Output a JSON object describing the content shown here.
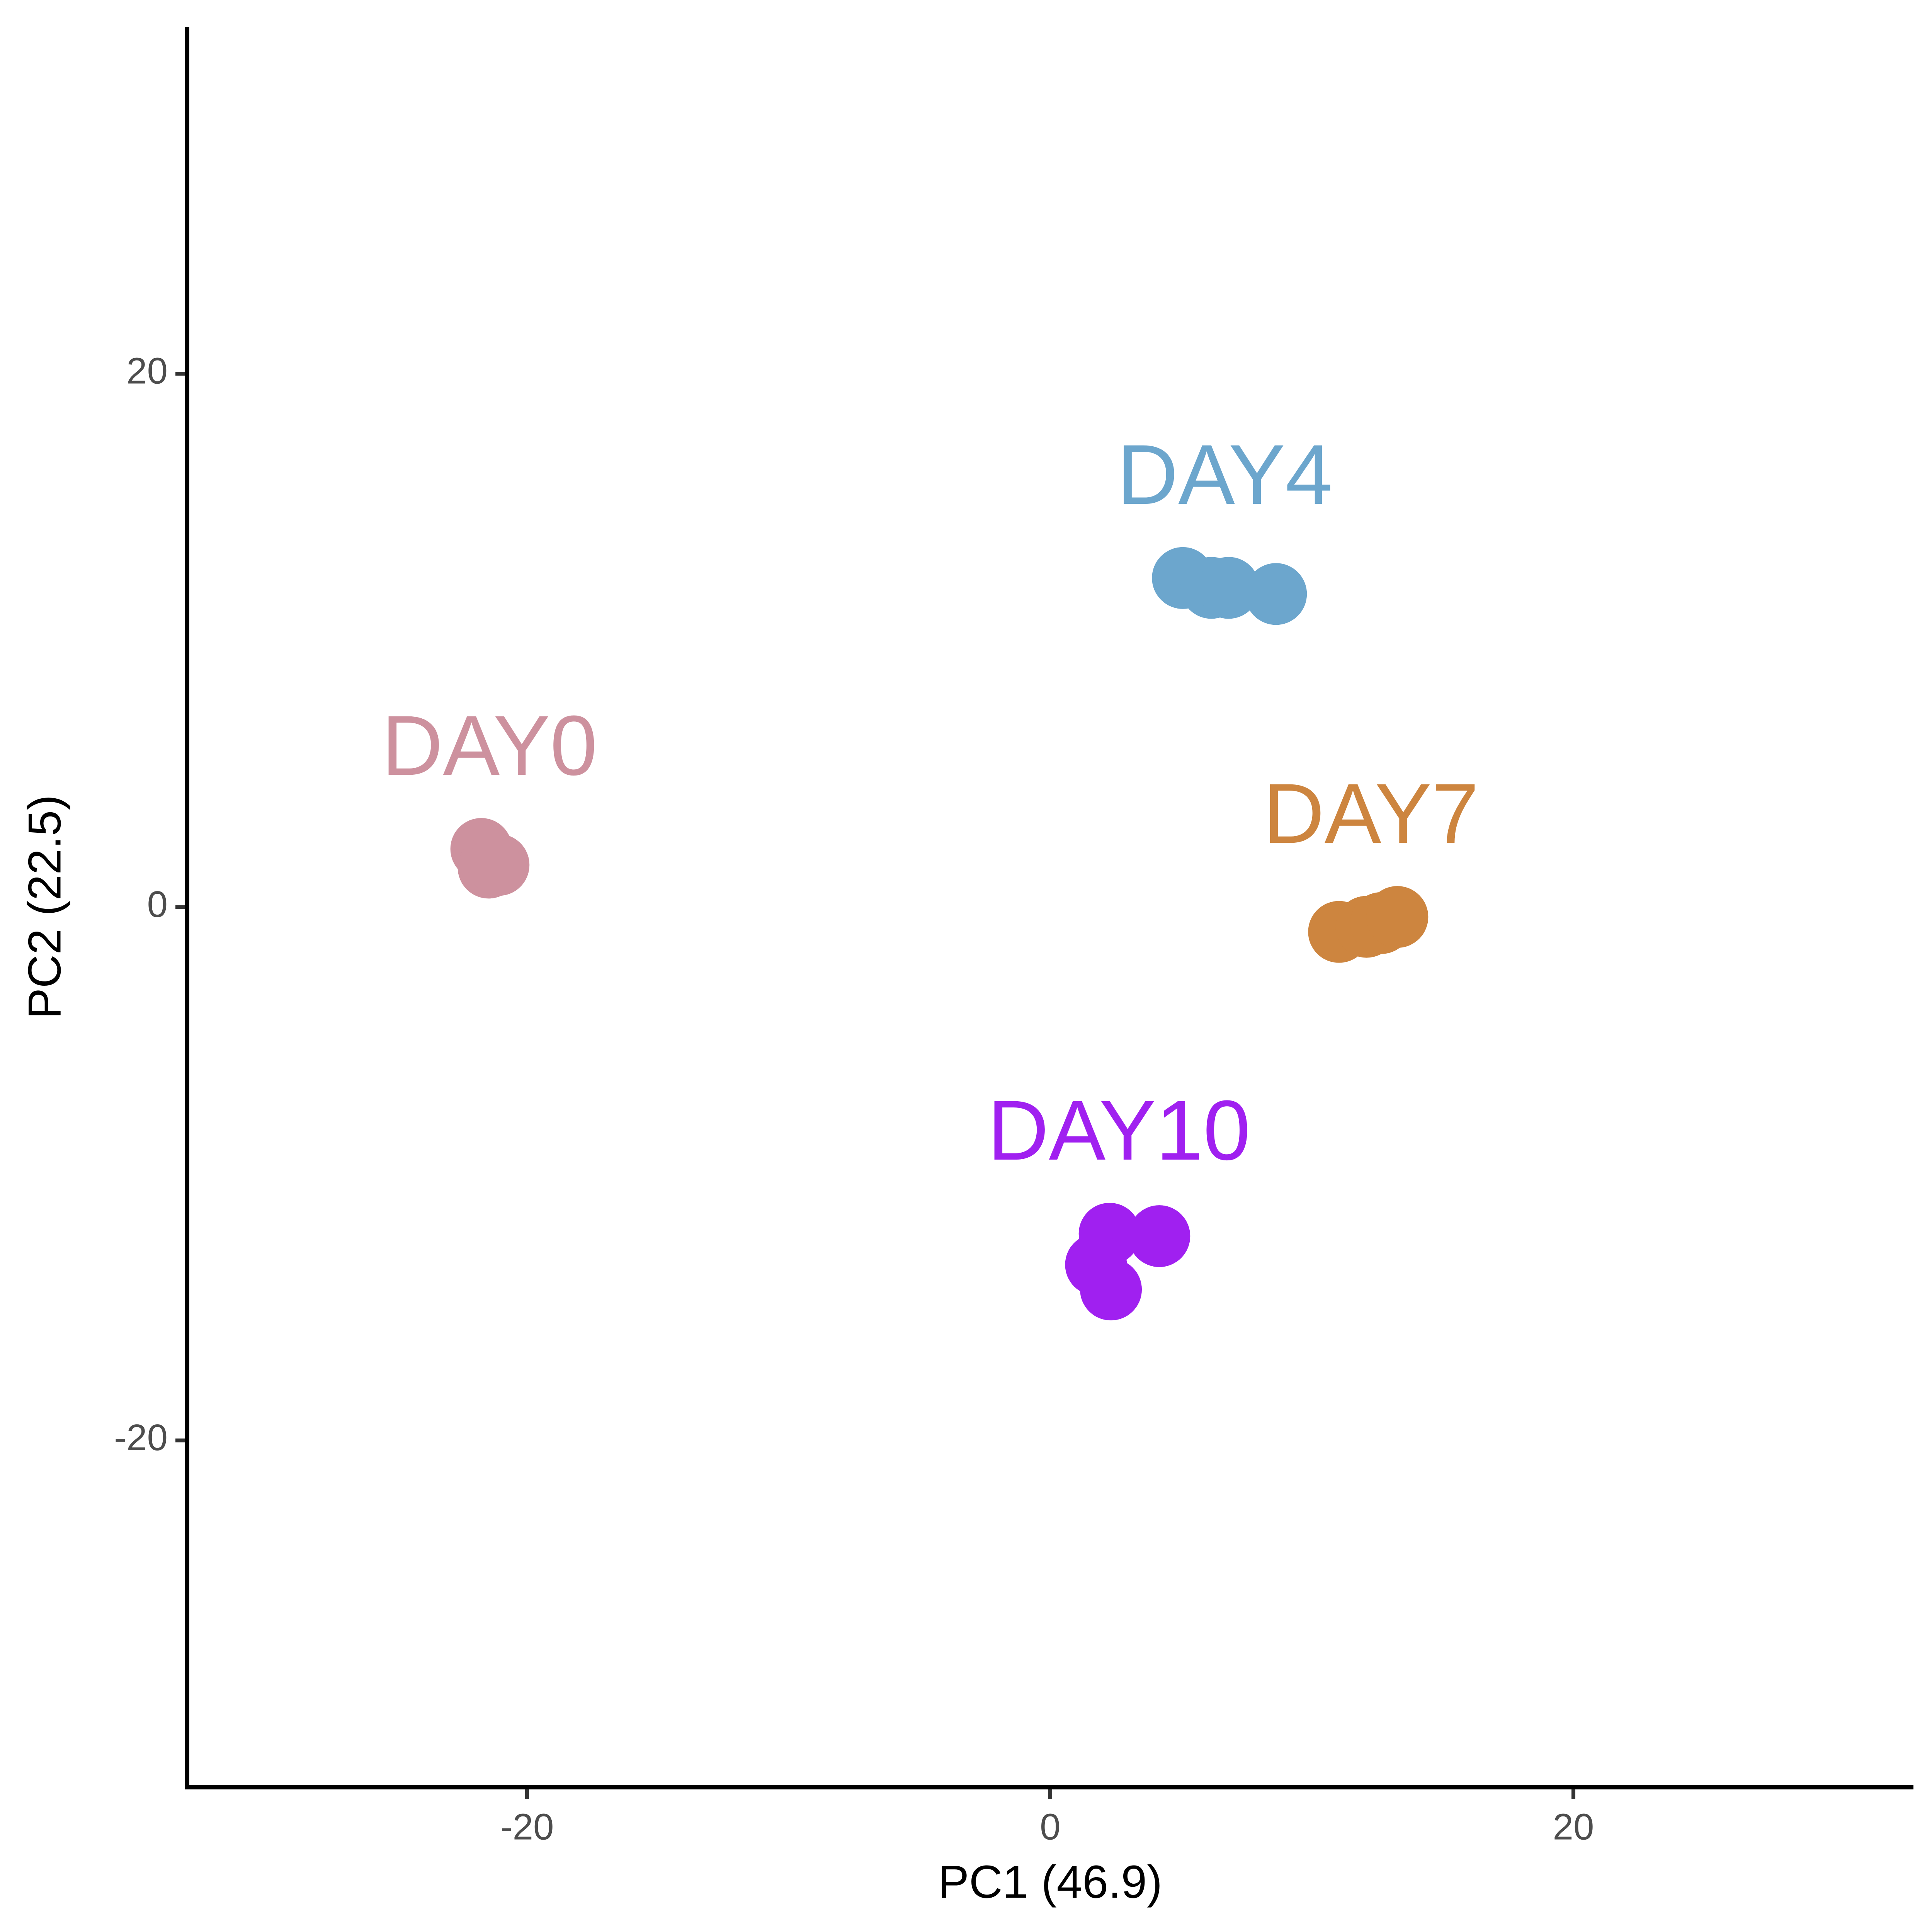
{
  "chart_data": {
    "type": "scatter",
    "xlabel": "PC1 (46.9)",
    "ylabel": "PC2 (22.5)",
    "xlim": [
      -33,
      33
    ],
    "ylim": [
      -33,
      33
    ],
    "xticks": [
      -20,
      0,
      20
    ],
    "yticks": [
      -20,
      0,
      20
    ],
    "grid": false,
    "series": [
      {
        "name": "DAY0",
        "color": "#CD919E",
        "x": [
          -21.75,
          -21.47,
          -21.09
        ],
        "y": [
          2.18,
          1.48,
          1.58
        ]
      },
      {
        "name": "DAY4",
        "color": "#6CA6CD",
        "x": [
          5.07,
          6.16,
          6.82,
          8.63
        ],
        "y": [
          12.34,
          11.97,
          11.97,
          11.74
        ]
      },
      {
        "name": "DAY7",
        "color": "#CD853F",
        "x": [
          11.04,
          12.09,
          12.65,
          13.27
        ],
        "y": [
          -0.93,
          -0.74,
          -0.6,
          -0.37
        ]
      },
      {
        "name": "DAY10",
        "color": "#A020F0",
        "x": [
          2.27,
          4.17,
          1.75,
          2.32
        ],
        "y": [
          -12.25,
          -12.34,
          -13.41,
          -14.34
        ]
      }
    ]
  }
}
